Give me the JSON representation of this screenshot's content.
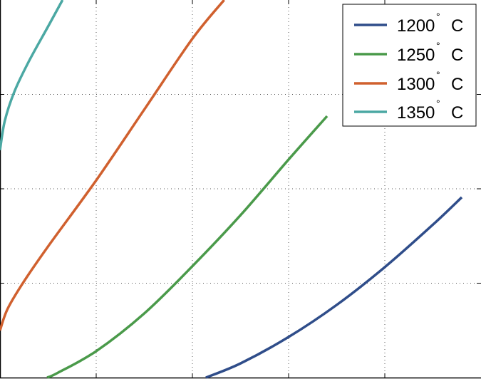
{
  "chart_data": {
    "type": "line",
    "title": "",
    "xlabel": "",
    "ylabel": "",
    "xlim": [
      0,
      5
    ],
    "ylim": [
      0,
      4
    ],
    "grid": true,
    "legend_position": "top-right",
    "series": [
      {
        "name": "1200° C",
        "color": "#2f4d8a",
        "x": [
          2.14,
          2.5,
          3.0,
          3.5,
          4.0,
          4.5,
          4.8
        ],
        "y": [
          0.0,
          0.15,
          0.43,
          0.77,
          1.17,
          1.62,
          1.91
        ]
      },
      {
        "name": "1250° C",
        "color": "#4a9a4a",
        "x": [
          0.49,
          0.6,
          1.0,
          1.5,
          2.0,
          2.5,
          3.0,
          3.4
        ],
        "y": [
          0.0,
          0.05,
          0.28,
          0.68,
          1.18,
          1.72,
          2.31,
          2.77
        ]
      },
      {
        "name": "1300° C",
        "color": "#d0602e",
        "x": [
          0.0,
          0.08,
          0.25,
          0.5,
          1.0,
          1.5,
          2.0,
          2.33
        ],
        "y": [
          0.5,
          0.73,
          1.02,
          1.39,
          2.09,
          2.84,
          3.59,
          4.0
        ]
      },
      {
        "name": "1350° C",
        "color": "#4ba8a3",
        "x": [
          0.0,
          0.05,
          0.15,
          0.3,
          0.5,
          0.65
        ],
        "y": [
          2.41,
          2.72,
          3.03,
          3.35,
          3.72,
          4.0
        ]
      }
    ],
    "legend": [
      {
        "label": "1200",
        "unit": "C",
        "degree": "°"
      },
      {
        "label": "1250",
        "unit": "C",
        "degree": "°"
      },
      {
        "label": "1300",
        "unit": "C",
        "degree": "°"
      },
      {
        "label": "1350",
        "unit": "C",
        "degree": "°"
      }
    ]
  }
}
